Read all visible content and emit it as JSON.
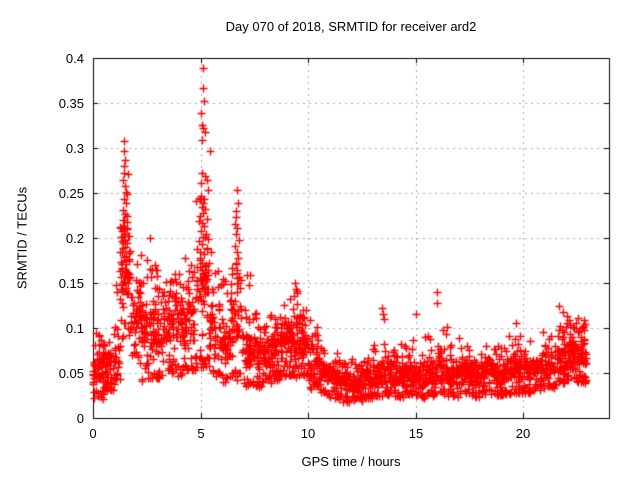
{
  "figure": {
    "background": "#ffffff",
    "border_color": "#000000",
    "text_color": "#000000"
  },
  "chart_data": {
    "type": "scatter",
    "title": "Day 070 of 2018, SRMTID for receiver ard2",
    "xlabel": "GPS time / hours",
    "ylabel": "SRMTID / TECUs",
    "xlim": [
      0,
      24
    ],
    "ylim": [
      0,
      0.4
    ],
    "xticks": [
      [
        0,
        "0"
      ],
      [
        5,
        "5"
      ],
      [
        10,
        "10"
      ],
      [
        15,
        "15"
      ],
      [
        20,
        "20"
      ]
    ],
    "yticks": [
      [
        0,
        "0"
      ],
      [
        0.05,
        "0.05"
      ],
      [
        0.1,
        "0.1"
      ],
      [
        0.15,
        "0.15"
      ],
      [
        0.2,
        "0.2"
      ],
      [
        0.25,
        "0.25"
      ],
      [
        0.3,
        "0.3"
      ],
      [
        0.35,
        "0.35"
      ],
      [
        0.4,
        "0.4"
      ]
    ],
    "grid": {
      "enabled": true,
      "dashed": true,
      "color": "#aaaaaa"
    },
    "legend": "none",
    "marker": {
      "glyph": "plus",
      "color": "#ff0000",
      "size": 9
    },
    "seed": 11,
    "density_bins": [
      [
        0.0,
        0.5,
        70,
        0.018,
        0.03,
        0.08,
        0.1
      ],
      [
        0.5,
        1.0,
        55,
        0.025,
        0.04,
        0.08,
        0.1
      ],
      [
        1.0,
        1.25,
        22,
        0.04,
        0.05,
        0.11,
        0.155
      ],
      [
        1.25,
        1.75,
        60,
        0.08,
        0.11,
        0.21,
        0.25
      ],
      [
        1.75,
        2.25,
        48,
        0.055,
        0.075,
        0.165,
        0.23
      ],
      [
        2.25,
        2.75,
        55,
        0.035,
        0.045,
        0.15,
        0.185
      ],
      [
        2.75,
        3.25,
        60,
        0.04,
        0.055,
        0.14,
        0.175
      ],
      [
        3.25,
        3.75,
        58,
        0.04,
        0.07,
        0.15,
        0.165
      ],
      [
        3.75,
        4.25,
        55,
        0.04,
        0.06,
        0.145,
        0.175
      ],
      [
        4.25,
        4.75,
        52,
        0.045,
        0.06,
        0.15,
        0.18
      ],
      [
        4.75,
        5.4,
        75,
        0.05,
        0.07,
        0.24,
        0.26
      ],
      [
        5.4,
        5.9,
        50,
        0.04,
        0.055,
        0.14,
        0.205
      ],
      [
        5.9,
        6.4,
        45,
        0.035,
        0.05,
        0.12,
        0.16
      ],
      [
        6.4,
        7.0,
        60,
        0.035,
        0.055,
        0.16,
        0.2
      ],
      [
        7.0,
        7.5,
        52,
        0.03,
        0.045,
        0.11,
        0.16
      ],
      [
        7.5,
        8.0,
        55,
        0.03,
        0.045,
        0.095,
        0.125
      ],
      [
        8.0,
        8.5,
        60,
        0.032,
        0.05,
        0.1,
        0.118
      ],
      [
        8.5,
        9.0,
        62,
        0.035,
        0.055,
        0.11,
        0.13
      ],
      [
        9.0,
        9.5,
        65,
        0.04,
        0.06,
        0.12,
        0.148
      ],
      [
        9.5,
        10.0,
        65,
        0.04,
        0.06,
        0.11,
        0.132
      ],
      [
        10.0,
        10.5,
        55,
        0.028,
        0.04,
        0.085,
        0.11
      ],
      [
        10.5,
        11.0,
        50,
        0.022,
        0.032,
        0.07,
        0.088
      ],
      [
        11.0,
        11.5,
        55,
        0.016,
        0.028,
        0.06,
        0.075
      ],
      [
        11.5,
        12.0,
        55,
        0.014,
        0.025,
        0.055,
        0.07
      ],
      [
        12.0,
        12.5,
        55,
        0.015,
        0.025,
        0.057,
        0.072
      ],
      [
        12.5,
        13.0,
        55,
        0.018,
        0.028,
        0.06,
        0.08
      ],
      [
        13.0,
        13.5,
        52,
        0.02,
        0.03,
        0.07,
        0.105
      ],
      [
        13.5,
        14.0,
        52,
        0.022,
        0.032,
        0.08,
        0.11
      ],
      [
        14.0,
        14.5,
        55,
        0.018,
        0.03,
        0.065,
        0.09
      ],
      [
        14.5,
        15.0,
        55,
        0.022,
        0.033,
        0.07,
        0.095
      ],
      [
        15.0,
        15.5,
        52,
        0.018,
        0.03,
        0.07,
        0.1
      ],
      [
        15.5,
        16.0,
        52,
        0.02,
        0.03,
        0.075,
        0.105
      ],
      [
        16.0,
        16.5,
        52,
        0.022,
        0.033,
        0.08,
        0.11
      ],
      [
        16.5,
        17.0,
        50,
        0.02,
        0.03,
        0.068,
        0.09
      ],
      [
        17.0,
        17.5,
        55,
        0.022,
        0.033,
        0.072,
        0.098
      ],
      [
        17.5,
        18.0,
        55,
        0.02,
        0.03,
        0.07,
        0.092
      ],
      [
        18.0,
        18.5,
        55,
        0.022,
        0.033,
        0.07,
        0.09
      ],
      [
        18.5,
        19.0,
        55,
        0.02,
        0.03,
        0.065,
        0.088
      ],
      [
        19.0,
        19.5,
        55,
        0.022,
        0.033,
        0.07,
        0.095
      ],
      [
        19.5,
        20.0,
        55,
        0.022,
        0.035,
        0.075,
        0.1
      ],
      [
        20.0,
        20.5,
        55,
        0.024,
        0.035,
        0.07,
        0.092
      ],
      [
        20.5,
        21.0,
        50,
        0.028,
        0.038,
        0.072,
        0.095
      ],
      [
        21.0,
        21.5,
        50,
        0.03,
        0.04,
        0.078,
        0.1
      ],
      [
        21.5,
        22.0,
        55,
        0.033,
        0.045,
        0.09,
        0.115
      ],
      [
        22.0,
        22.5,
        62,
        0.038,
        0.05,
        0.1,
        0.118
      ],
      [
        22.5,
        22.95,
        58,
        0.035,
        0.048,
        0.095,
        0.112
      ]
    ],
    "points": [
      [
        1.44,
        0.308
      ],
      [
        1.46,
        0.297
      ],
      [
        1.49,
        0.287
      ],
      [
        1.42,
        0.28
      ],
      [
        1.45,
        0.272
      ],
      [
        1.62,
        0.271
      ],
      [
        1.4,
        0.265
      ],
      [
        1.47,
        0.258
      ],
      [
        1.52,
        0.251
      ],
      [
        1.57,
        0.249
      ],
      [
        1.45,
        0.243
      ],
      [
        1.55,
        0.239
      ],
      [
        1.41,
        0.231
      ],
      [
        1.48,
        0.227
      ],
      [
        1.6,
        0.224
      ],
      [
        1.43,
        0.22
      ],
      [
        1.56,
        0.218
      ],
      [
        1.46,
        0.213
      ],
      [
        1.59,
        0.211
      ],
      [
        1.33,
        0.208
      ],
      [
        1.51,
        0.205
      ],
      [
        1.42,
        0.202
      ],
      [
        1.29,
        0.201
      ],
      [
        1.5,
        0.198
      ],
      [
        1.38,
        0.194
      ],
      [
        1.47,
        0.19
      ],
      [
        1.36,
        0.185
      ],
      [
        1.44,
        0.179
      ],
      [
        1.53,
        0.175
      ],
      [
        1.35,
        0.171
      ],
      [
        1.47,
        0.166
      ],
      [
        1.55,
        0.162
      ],
      [
        1.31,
        0.157
      ],
      [
        1.43,
        0.151
      ],
      [
        5.1,
        0.389
      ],
      [
        5.13,
        0.367
      ],
      [
        5.16,
        0.352
      ],
      [
        5.01,
        0.339
      ],
      [
        5.08,
        0.326
      ],
      [
        5.12,
        0.322
      ],
      [
        5.21,
        0.318
      ],
      [
        5.07,
        0.309
      ],
      [
        5.44,
        0.297
      ],
      [
        5.05,
        0.272
      ],
      [
        5.22,
        0.269
      ],
      [
        5.3,
        0.265
      ],
      [
        5.02,
        0.261
      ],
      [
        5.36,
        0.253
      ],
      [
        5.0,
        0.247
      ],
      [
        5.15,
        0.243
      ],
      [
        5.1,
        0.239
      ],
      [
        5.05,
        0.235
      ],
      [
        5.2,
        0.232
      ],
      [
        5.12,
        0.228
      ],
      [
        4.98,
        0.224
      ],
      [
        5.3,
        0.221
      ],
      [
        5.08,
        0.217
      ],
      [
        5.18,
        0.213
      ],
      [
        5.02,
        0.208
      ],
      [
        5.25,
        0.204
      ],
      [
        5.33,
        0.199
      ],
      [
        5.06,
        0.193
      ],
      [
        5.28,
        0.188
      ],
      [
        5.14,
        0.182
      ],
      [
        4.97,
        0.176
      ],
      [
        5.24,
        0.17
      ],
      [
        5.09,
        0.164
      ],
      [
        5.19,
        0.158
      ],
      [
        5.03,
        0.152
      ],
      [
        6.7,
        0.253
      ],
      [
        6.76,
        0.239
      ],
      [
        6.67,
        0.23
      ],
      [
        6.63,
        0.223
      ],
      [
        6.6,
        0.216
      ],
      [
        6.72,
        0.211
      ],
      [
        6.66,
        0.205
      ],
      [
        6.78,
        0.198
      ],
      [
        6.62,
        0.191
      ],
      [
        6.7,
        0.185
      ],
      [
        6.74,
        0.178
      ],
      [
        6.65,
        0.171
      ],
      [
        6.69,
        0.164
      ],
      [
        6.8,
        0.157
      ],
      [
        6.73,
        0.15
      ],
      [
        6.85,
        0.145
      ],
      [
        2.63,
        0.2
      ],
      [
        2.9,
        0.17
      ],
      [
        2.95,
        0.164
      ],
      [
        7.15,
        0.159
      ],
      [
        7.25,
        0.148
      ],
      [
        9.4,
        0.15
      ],
      [
        9.45,
        0.143
      ],
      [
        9.35,
        0.136
      ],
      [
        10.1,
        0.109
      ],
      [
        13.42,
        0.122
      ],
      [
        13.48,
        0.116
      ],
      [
        13.55,
        0.11
      ],
      [
        15.02,
        0.116
      ],
      [
        15.98,
        0.14
      ],
      [
        16.02,
        0.128
      ],
      [
        16.3,
        0.098
      ],
      [
        19.68,
        0.106
      ],
      [
        20.95,
        0.096
      ],
      [
        21.68,
        0.124
      ],
      [
        21.85,
        0.118
      ],
      [
        22.05,
        0.113
      ],
      [
        22.55,
        0.111
      ],
      [
        0.15,
        0.095
      ],
      [
        1.05,
        0.148
      ],
      [
        1.1,
        0.14
      ],
      [
        6.05,
        0.155
      ],
      [
        5.95,
        0.148
      ],
      [
        4.55,
        0.17
      ],
      [
        4.45,
        0.163
      ],
      [
        4.62,
        0.157
      ]
    ]
  }
}
